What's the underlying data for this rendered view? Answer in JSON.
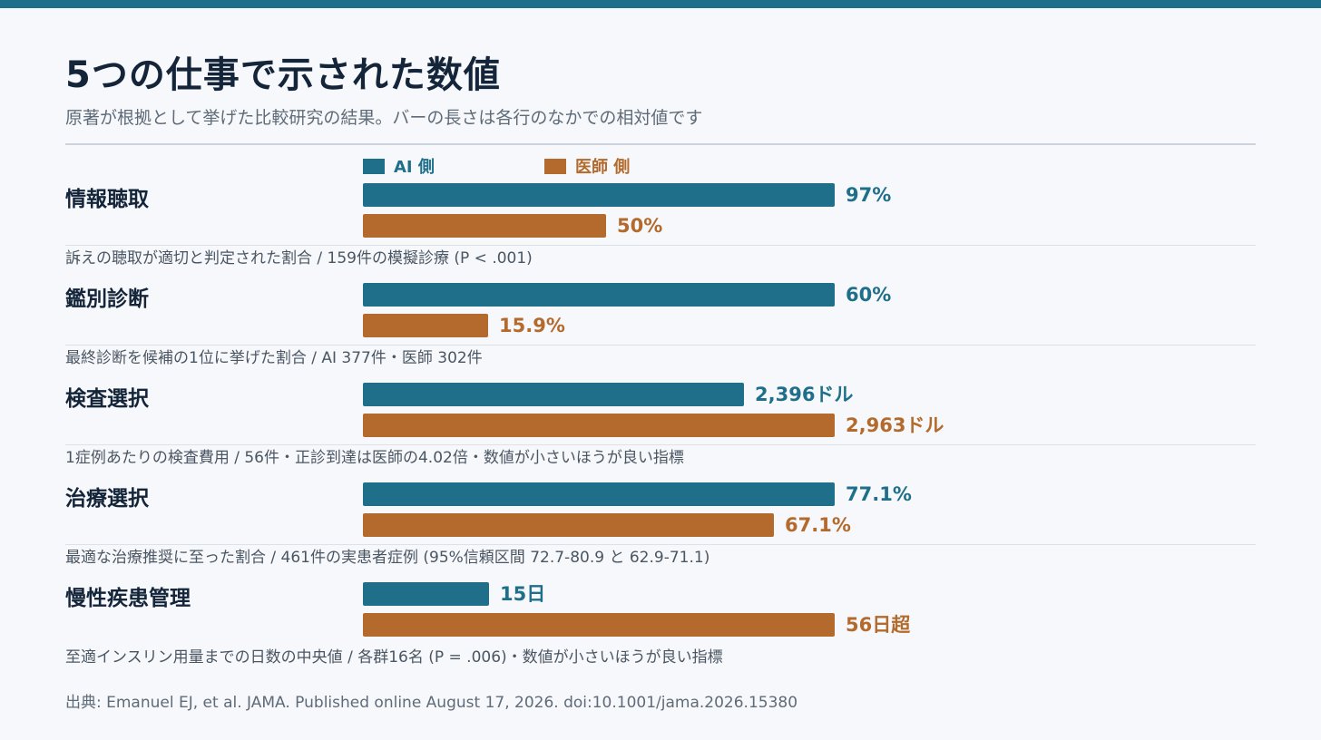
{
  "header": {
    "title": "5つの仕事で示された数値",
    "subtitle": "原著が根拠として挙げた比較研究の結果。バーの長さは各行のなかでの相対値です"
  },
  "colors": {
    "ai": "#1f6f8b",
    "doctor": "#b36a2c",
    "topbar": "#1f6f8b"
  },
  "chart_data": {
    "type": "bar",
    "orientation": "horizontal",
    "normalization": "per-row (longest bar in each row = full length)",
    "legend": {
      "placement": "top",
      "entries": [
        "AI 側",
        "医師 側"
      ]
    },
    "series": [
      {
        "name": "AI 側",
        "color": "#1f6f8b"
      },
      {
        "name": "医師 側",
        "color": "#b36a2c"
      }
    ],
    "rows": [
      {
        "label": "情報聴取",
        "values": [
          97,
          50
        ],
        "display": [
          "97%",
          "50%"
        ],
        "note": "訴えの聴取が適切と判定された割合 / 159件の模擬診療 (P < .001)"
      },
      {
        "label": "鑑別診断",
        "values": [
          60,
          15.9
        ],
        "display": [
          "60%",
          "15.9%"
        ],
        "note": "最終診断を候補の1位に挙げた割合 / AI 377件・医師 302件"
      },
      {
        "label": "検査選択",
        "values": [
          2396,
          2963
        ],
        "display": [
          "2,396ドル",
          "2,963ドル"
        ],
        "note": "1症例あたりの検査費用 / 56件・正診到達は医師の4.02倍・数値が小さいほうが良い指標"
      },
      {
        "label": "治療選択",
        "values": [
          77.1,
          67.1
        ],
        "display": [
          "77.1%",
          "67.1%"
        ],
        "note": "最適な治療推奨に至った割合 / 461件の実患者症例 (95%信頼区間 72.7-80.9 と 62.9-71.1)"
      },
      {
        "label": "慢性疾患管理",
        "values": [
          15,
          56
        ],
        "display": [
          "15日",
          "56日超"
        ],
        "note": "至適インスリン用量までの日数の中央値 / 各群16名 (P = .006)・数値が小さいほうが良い指標"
      }
    ]
  },
  "footer": {
    "source": "出典: Emanuel EJ, et al. JAMA. Published online August 17, 2026. doi:10.1001/jama.2026.15380"
  }
}
